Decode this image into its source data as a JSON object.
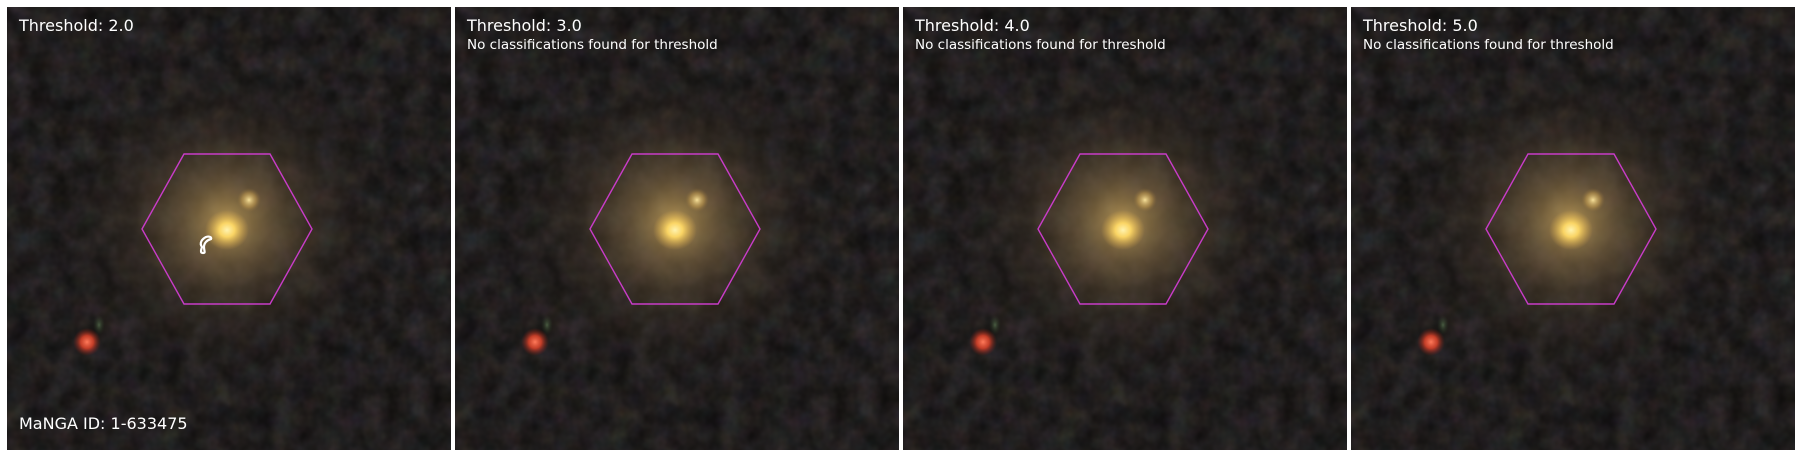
{
  "figure": {
    "panels": [
      {
        "title": "Threshold: 2.0",
        "subtitle": "",
        "footer": "MaNGA ID: 1-633475",
        "show_contour": true
      },
      {
        "title": "Threshold: 3.0",
        "subtitle": "No classifications found for threshold",
        "footer": "",
        "show_contour": false
      },
      {
        "title": "Threshold: 4.0",
        "subtitle": "No classifications found for threshold",
        "footer": "",
        "show_contour": false
      },
      {
        "title": "Threshold: 5.0",
        "subtitle": "No classifications found for threshold",
        "footer": "",
        "show_contour": false
      }
    ],
    "colors": {
      "background": "#0c0b0a",
      "hexagon": "#c83cc8",
      "contour": "#ffffff",
      "galaxy_core": "#ffd966",
      "galaxy_halo": "#8a7048",
      "red_star": "#e0442a",
      "text": "#ffffff"
    },
    "overlay_shape": "hexagon",
    "image_content": "galaxy-cutout"
  }
}
